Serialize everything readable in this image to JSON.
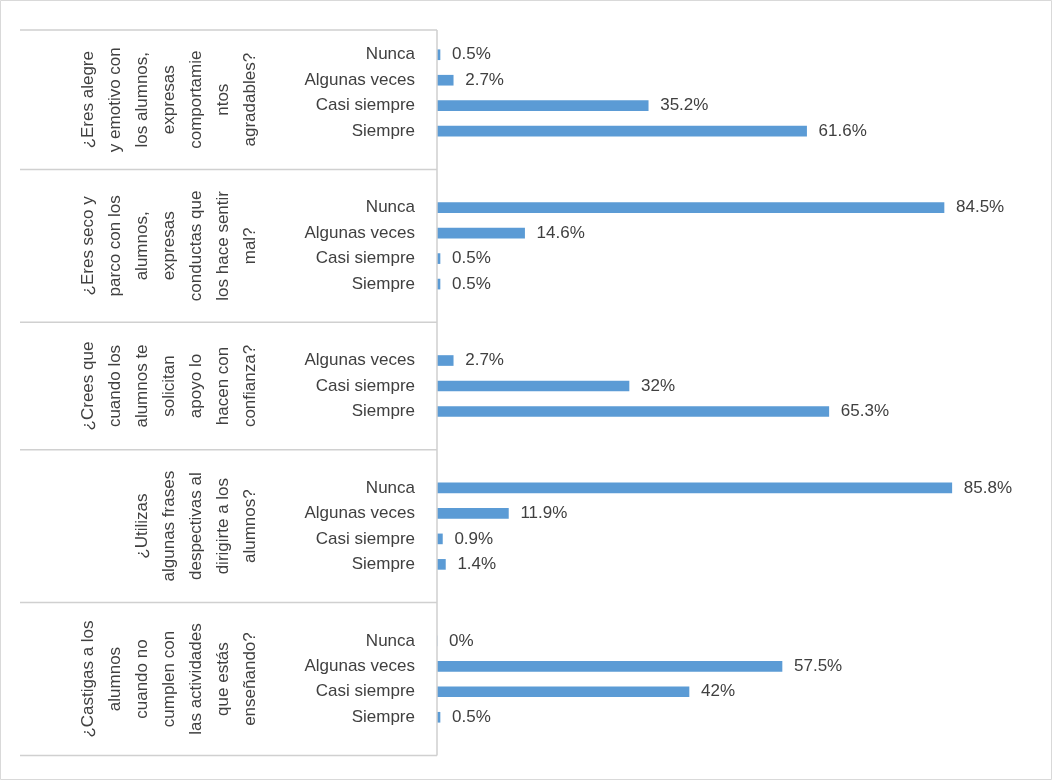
{
  "chart_data": {
    "type": "bar",
    "orientation": "horizontal",
    "color": "#5b9bd5",
    "categories": [
      "Nunca",
      "Algunas veces",
      "Casi siempre",
      "Siempre",
      null,
      null,
      "Nunca",
      "Algunas veces",
      "Casi siempre",
      "Siempre",
      null,
      null,
      "Algunas veces",
      "Casi siempre",
      "Siempre",
      null,
      null,
      "Nunca",
      "Algunas veces",
      "Casi siempre",
      "Siempre",
      null,
      null,
      "Nunca",
      "Algunas veces",
      "Casi siempre",
      "Siempre"
    ],
    "values": [
      0.5,
      2.7,
      35.2,
      61.6,
      null,
      null,
      84.5,
      14.6,
      0.5,
      0.5,
      null,
      null,
      2.7,
      32,
      65.3,
      null,
      null,
      85.8,
      11.9,
      0.9,
      1.4,
      null,
      null,
      0,
      57.5,
      42,
      0.5
    ],
    "value_labels": [
      "0.5%",
      "2.7%",
      "35.2%",
      "61.6%",
      null,
      null,
      "84.5%",
      "14.6%",
      "0.5%",
      "0.5%",
      null,
      null,
      "2.7%",
      "32%",
      "65.3%",
      null,
      null,
      "85.8%",
      "11.9%",
      "0.9%",
      "1.4%",
      null,
      null,
      "0%",
      "57.5%",
      "42%",
      "0.5%"
    ],
    "annotations": [
      "¿Eres alegre y emotivo con los alumnos, expresas comportamientos agradables?",
      "¿Eres seco y parco con los alumnos, expresas conductas que los hace sentir mal?",
      "¿Crees que cuando los alumnos te solicitan apoyo lo hacen con confianza?",
      "¿Utilizas algunas frases despectivas al dirigirte a los alumnos?",
      "¿Castigas a los alumnos cuando no cumplen con las actividades que estás enseñando?"
    ],
    "grid": false,
    "legend": false
  }
}
